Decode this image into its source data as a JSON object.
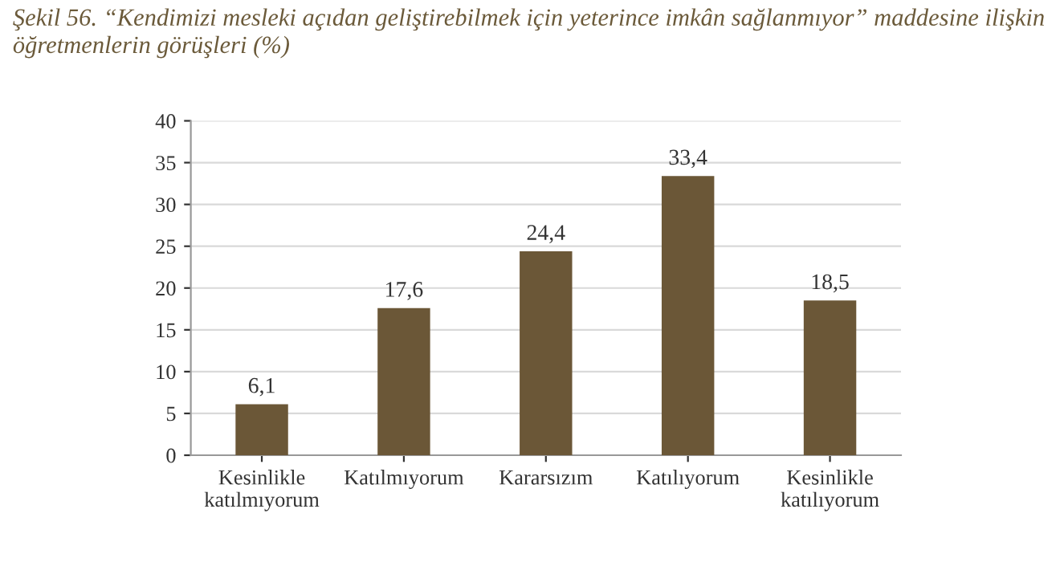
{
  "chart_data": {
    "type": "bar",
    "title": "Şekil 56. “Kendimizi mesleki açıdan geliştirebilmek için yeterince imkân sağlanmıyor” maddesine ilişkin öğretmenlerin görüşleri (%)",
    "categories": [
      "Kesinlikle\nkatılmıyorum",
      "Katılmıyorum",
      "Kararsızım",
      "Katılıyorum",
      "Kesinlikle\nkatılıyorum"
    ],
    "values": [
      6.1,
      17.6,
      24.4,
      33.4,
      18.5
    ],
    "value_labels": [
      "6,1",
      "17,6",
      "24,4",
      "33,4",
      "18,5"
    ],
    "color": "#6b5737",
    "ylim": [
      0,
      40
    ],
    "yticks": [
      0,
      5,
      10,
      15,
      20,
      25,
      30,
      35,
      40
    ],
    "grid": "y",
    "legend": false
  }
}
